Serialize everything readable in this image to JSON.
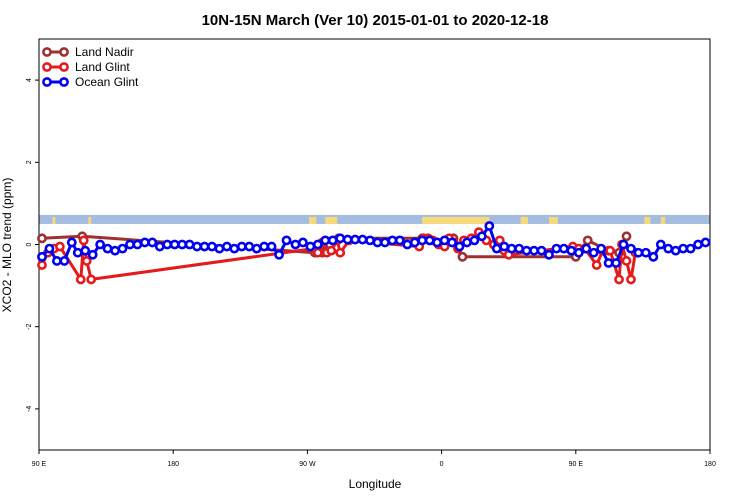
{
  "chart_data": {
    "type": "line",
    "title": "10N-15N March (Ver 10)   2015-01-01 to 2020-12-18",
    "xlabel": "Longitude",
    "ylabel": "XCO2 - MLO trend (ppm)",
    "x_unwrapped_range": [
      90,
      540
    ],
    "ylim": [
      -5,
      5
    ],
    "x_ticks": [
      {
        "value": 90,
        "label": "90 E"
      },
      {
        "value": 180,
        "label": "180"
      },
      {
        "value": 270,
        "label": "90 W"
      },
      {
        "value": 360,
        "label": "0"
      },
      {
        "value": 450,
        "label": "90 E"
      },
      {
        "value": 540,
        "label": "180"
      }
    ],
    "y_ticks": [
      {
        "value": -4,
        "label": "-4"
      },
      {
        "value": -2,
        "label": "-2"
      },
      {
        "value": 0,
        "label": "0"
      },
      {
        "value": 2,
        "label": "2"
      },
      {
        "value": 4,
        "label": "4"
      }
    ],
    "landmask_band": {
      "ymin": 0.5,
      "ymax": 0.72,
      "water_color": "#a4bcdf",
      "land_color": "#f6d97a"
    },
    "land_segments": [
      [
        99,
        101
      ],
      [
        123,
        125
      ],
      [
        271,
        276
      ],
      [
        282,
        290
      ],
      [
        347,
        392
      ],
      [
        413,
        418
      ],
      [
        432,
        438
      ],
      [
        496,
        500
      ],
      [
        507,
        510
      ]
    ],
    "legend": {
      "position": "top-left",
      "items": [
        "Land Nadir",
        "Land Glint",
        "Ocean Glint"
      ]
    },
    "series": [
      {
        "name": "Land Nadir",
        "color": "#9e3030",
        "x": [
          92,
          119,
          275,
          278,
          280,
          285,
          291,
          347,
          352,
          357,
          362,
          368,
          374,
          450,
          458,
          472,
          479,
          484
        ],
        "y": [
          0.15,
          0.2,
          -0.2,
          -0.15,
          -0.2,
          0.0,
          0.15,
          0.15,
          0.1,
          0.05,
          0.05,
          0.15,
          -0.3,
          -0.3,
          0.1,
          -0.15,
          -0.2,
          0.2
        ]
      },
      {
        "name": "Land Glint",
        "color": "#e41a1c",
        "x": [
          92,
          96,
          100,
          104,
          118,
          120,
          122,
          125,
          274,
          277,
          280,
          283,
          286,
          290,
          292,
          298,
          345,
          348,
          351,
          354,
          358,
          362,
          365,
          368,
          371,
          375,
          380,
          385,
          390,
          395,
          399,
          402,
          405,
          448,
          452,
          456,
          464,
          468,
          473,
          479,
          481,
          484,
          487,
          490
        ],
        "y": [
          -0.5,
          -0.2,
          -0.1,
          -0.05,
          -0.85,
          0.1,
          -0.4,
          -0.85,
          -0.1,
          -0.2,
          0.05,
          -0.2,
          -0.15,
          0.1,
          -0.2,
          0.1,
          -0.05,
          0.15,
          0.15,
          0.1,
          0.0,
          -0.05,
          0.15,
          0.05,
          -0.1,
          0.1,
          0.15,
          0.3,
          0.1,
          0.0,
          0.1,
          -0.15,
          -0.25,
          -0.05,
          -0.1,
          -0.1,
          -0.5,
          -0.15,
          -0.15,
          -0.85,
          0.0,
          -0.4,
          -0.85,
          -0.2
        ]
      },
      {
        "name": "Ocean Glint",
        "color": "#0000ee",
        "x": [
          92,
          97,
          102,
          107,
          112,
          116,
          121,
          126,
          131,
          136,
          141,
          146,
          151,
          156,
          161,
          166,
          171,
          176,
          181,
          186,
          191,
          196,
          201,
          206,
          211,
          216,
          221,
          226,
          231,
          236,
          241,
          246,
          251,
          256,
          262,
          267,
          272,
          277,
          282,
          287,
          292,
          297,
          302,
          307,
          312,
          317,
          322,
          327,
          332,
          337,
          342,
          347,
          352,
          357,
          362,
          367,
          372,
          377,
          382,
          387,
          392,
          397,
          402,
          407,
          412,
          417,
          422,
          427,
          432,
          437,
          442,
          447,
          452,
          457,
          462,
          467,
          472,
          477,
          482,
          487,
          492,
          497,
          502,
          507,
          512,
          517,
          522,
          527,
          532,
          537
        ],
        "y": [
          -0.3,
          -0.1,
          -0.4,
          -0.4,
          0.05,
          -0.2,
          -0.15,
          -0.25,
          0.0,
          -0.1,
          -0.15,
          -0.1,
          0.0,
          0.0,
          0.05,
          0.05,
          -0.05,
          0.0,
          0.0,
          0.0,
          0.0,
          -0.05,
          -0.05,
          -0.05,
          -0.1,
          -0.05,
          -0.1,
          -0.05,
          -0.05,
          -0.1,
          -0.05,
          -0.05,
          -0.25,
          0.1,
          0.0,
          0.05,
          -0.05,
          0.0,
          0.1,
          0.1,
          0.15,
          0.12,
          0.12,
          0.12,
          0.1,
          0.05,
          0.05,
          0.1,
          0.1,
          0.0,
          0.05,
          0.1,
          0.1,
          0.05,
          0.1,
          0.05,
          -0.05,
          0.05,
          0.1,
          0.2,
          0.45,
          -0.1,
          -0.05,
          -0.1,
          -0.1,
          -0.15,
          -0.15,
          -0.15,
          -0.25,
          -0.1,
          -0.1,
          -0.15,
          -0.2,
          -0.1,
          -0.2,
          -0.1,
          -0.45,
          -0.45,
          0.0,
          -0.1,
          -0.2,
          -0.2,
          -0.3,
          0.0,
          -0.1,
          -0.15,
          -0.1,
          -0.1,
          0.0,
          0.05
        ]
      }
    ]
  }
}
